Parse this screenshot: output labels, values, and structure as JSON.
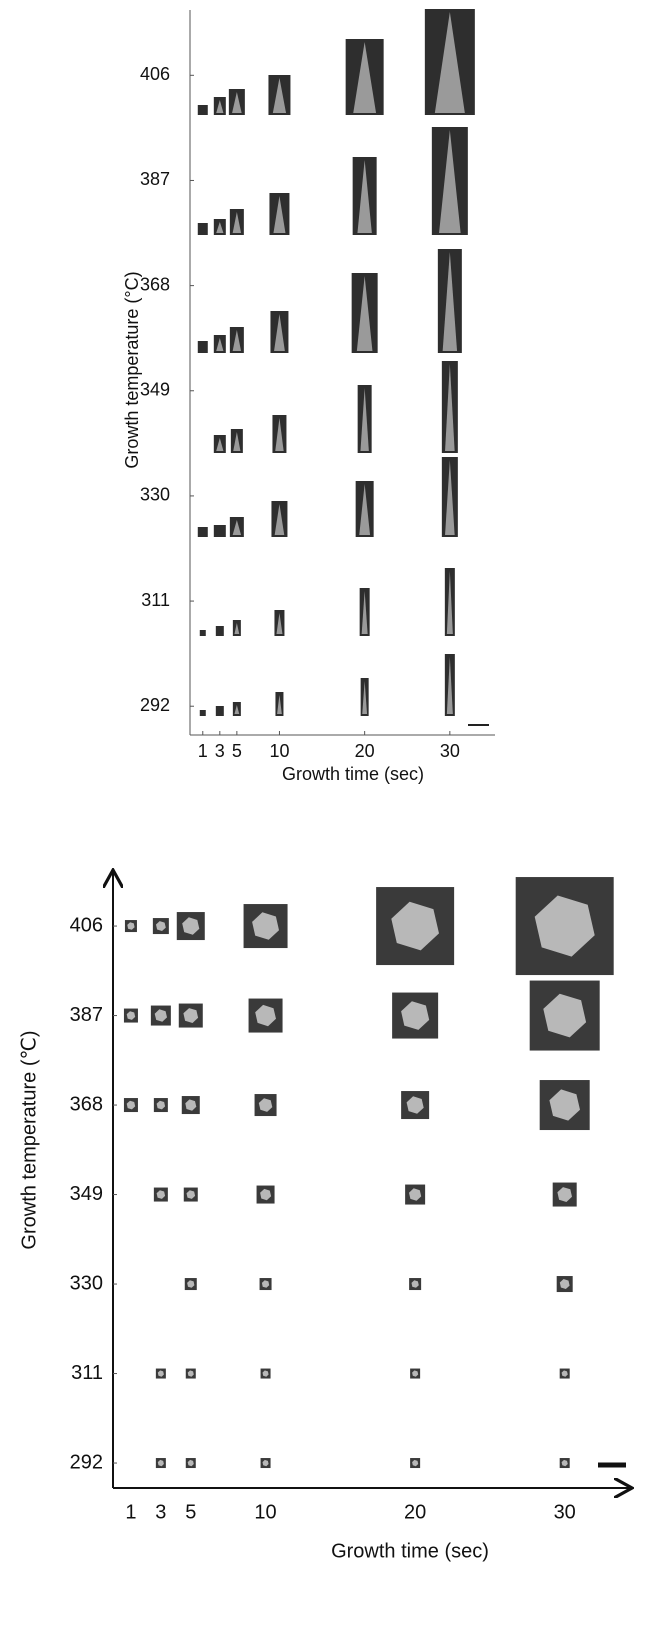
{
  "chart_data": [
    {
      "type": "image-grid",
      "x_label": "Growth time (sec)",
      "y_label": "Growth temperature (°C)",
      "xlim": [
        -0.5,
        35.3
      ],
      "ylim": [
        286.8,
        417.8
      ],
      "xticks": [
        1,
        3,
        5,
        10,
        20,
        30
      ],
      "yticks": [
        292,
        311,
        330,
        349,
        368,
        387,
        406
      ]
    },
    {
      "type": "image-grid",
      "x_label": "Growth time (sec)",
      "y_label": "Growth temperature (℃)",
      "xlim": [
        -0.2,
        34.5
      ],
      "ylim": [
        286.7,
        417.9
      ],
      "xticks": [
        1,
        3,
        5,
        10,
        20,
        30
      ],
      "yticks": [
        292,
        311,
        330,
        349,
        368,
        387,
        406
      ]
    }
  ]
}
